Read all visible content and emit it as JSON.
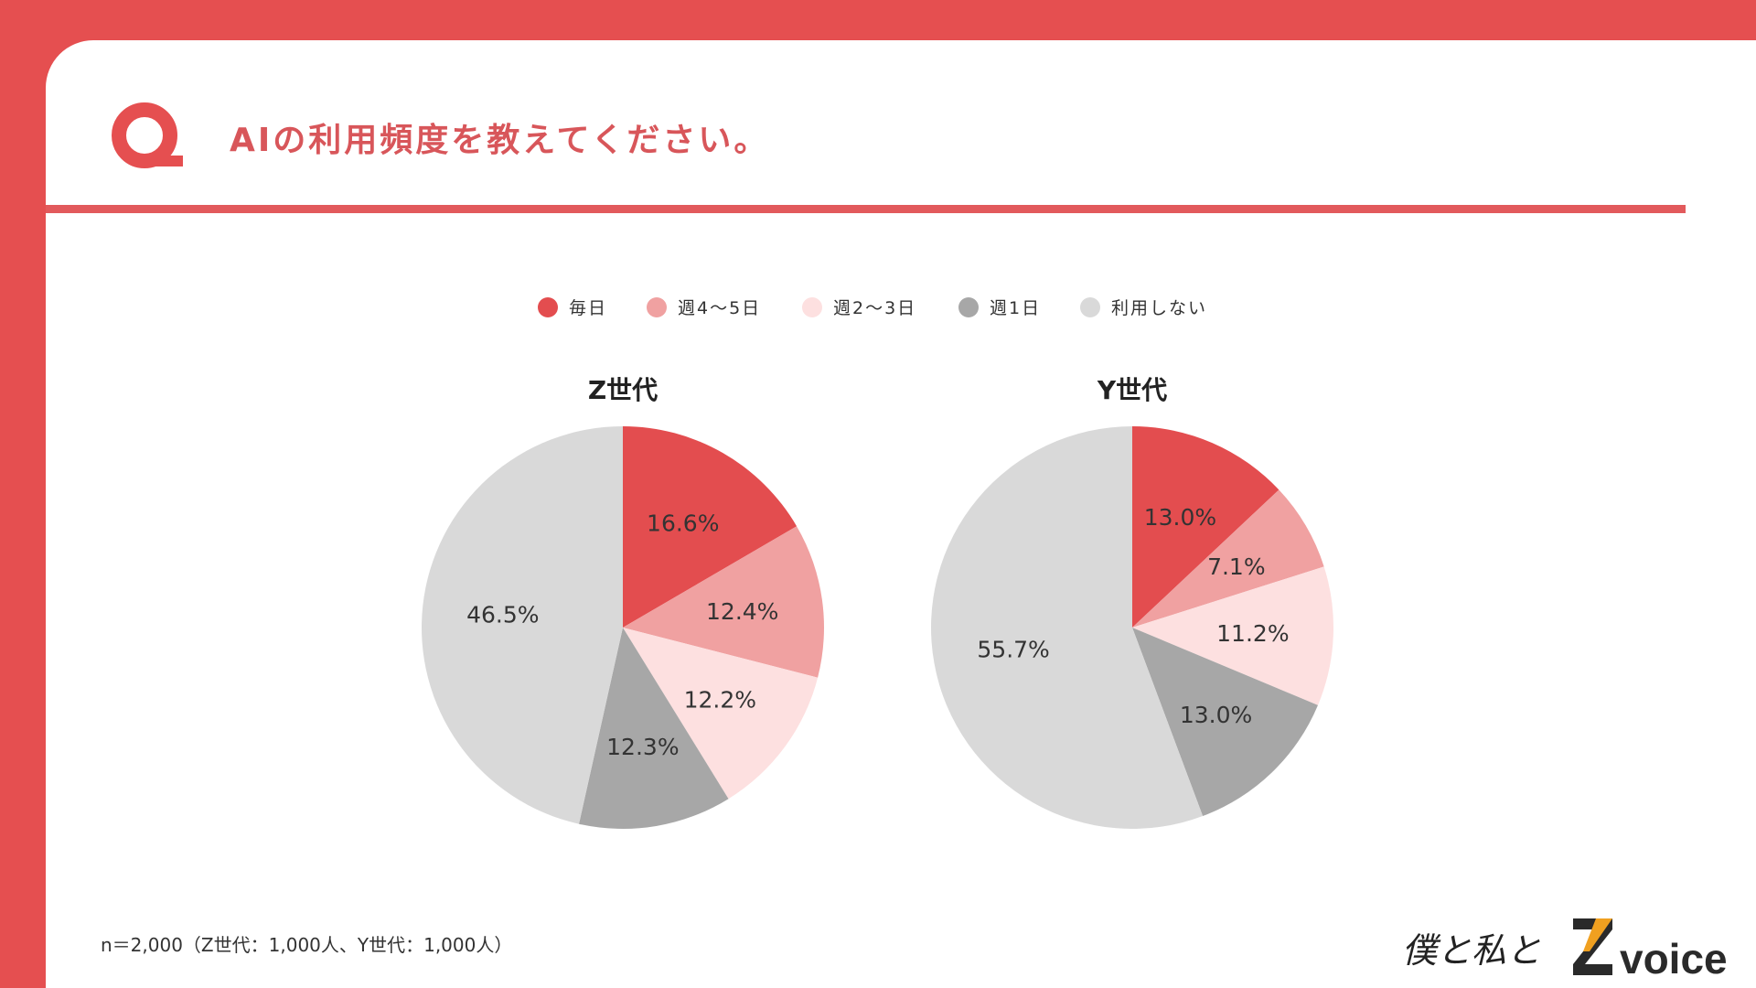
{
  "header": {
    "title": "AIの利用頻度を教えてください。",
    "q_icon": "Q"
  },
  "legend": [
    {
      "label": "毎日",
      "color": "#e34d4f"
    },
    {
      "label": "週4〜5日",
      "color": "#f0a1a1"
    },
    {
      "label": "週2〜3日",
      "color": "#fde0e0"
    },
    {
      "label": "週1日",
      "color": "#a7a7a7"
    },
    {
      "label": "利用しない",
      "color": "#d9d9d9"
    }
  ],
  "chart_data": [
    {
      "type": "pie",
      "title": "Z世代",
      "categories": [
        "毎日",
        "週4〜5日",
        "週2〜3日",
        "週1日",
        "利用しない"
      ],
      "values": [
        16.6,
        12.4,
        12.2,
        12.3,
        46.5
      ],
      "labels": [
        "16.6%",
        "12.4%",
        "12.2%",
        "12.3%",
        "46.5%"
      ],
      "legend": "top"
    },
    {
      "type": "pie",
      "title": "Y世代",
      "categories": [
        "毎日",
        "週4〜5日",
        "週2〜3日",
        "週1日",
        "利用しない"
      ],
      "values": [
        13.0,
        7.1,
        11.2,
        13.0,
        55.7
      ],
      "labels": [
        "13.0%",
        "7.1%",
        "11.2%",
        "13.0%",
        "55.7%"
      ],
      "legend": "top"
    }
  ],
  "footnote": "n＝2,000（Z世代：1,000人、Y世代：1,000人）",
  "logo": {
    "text1": "僕と私と",
    "text2": "Z voice"
  }
}
